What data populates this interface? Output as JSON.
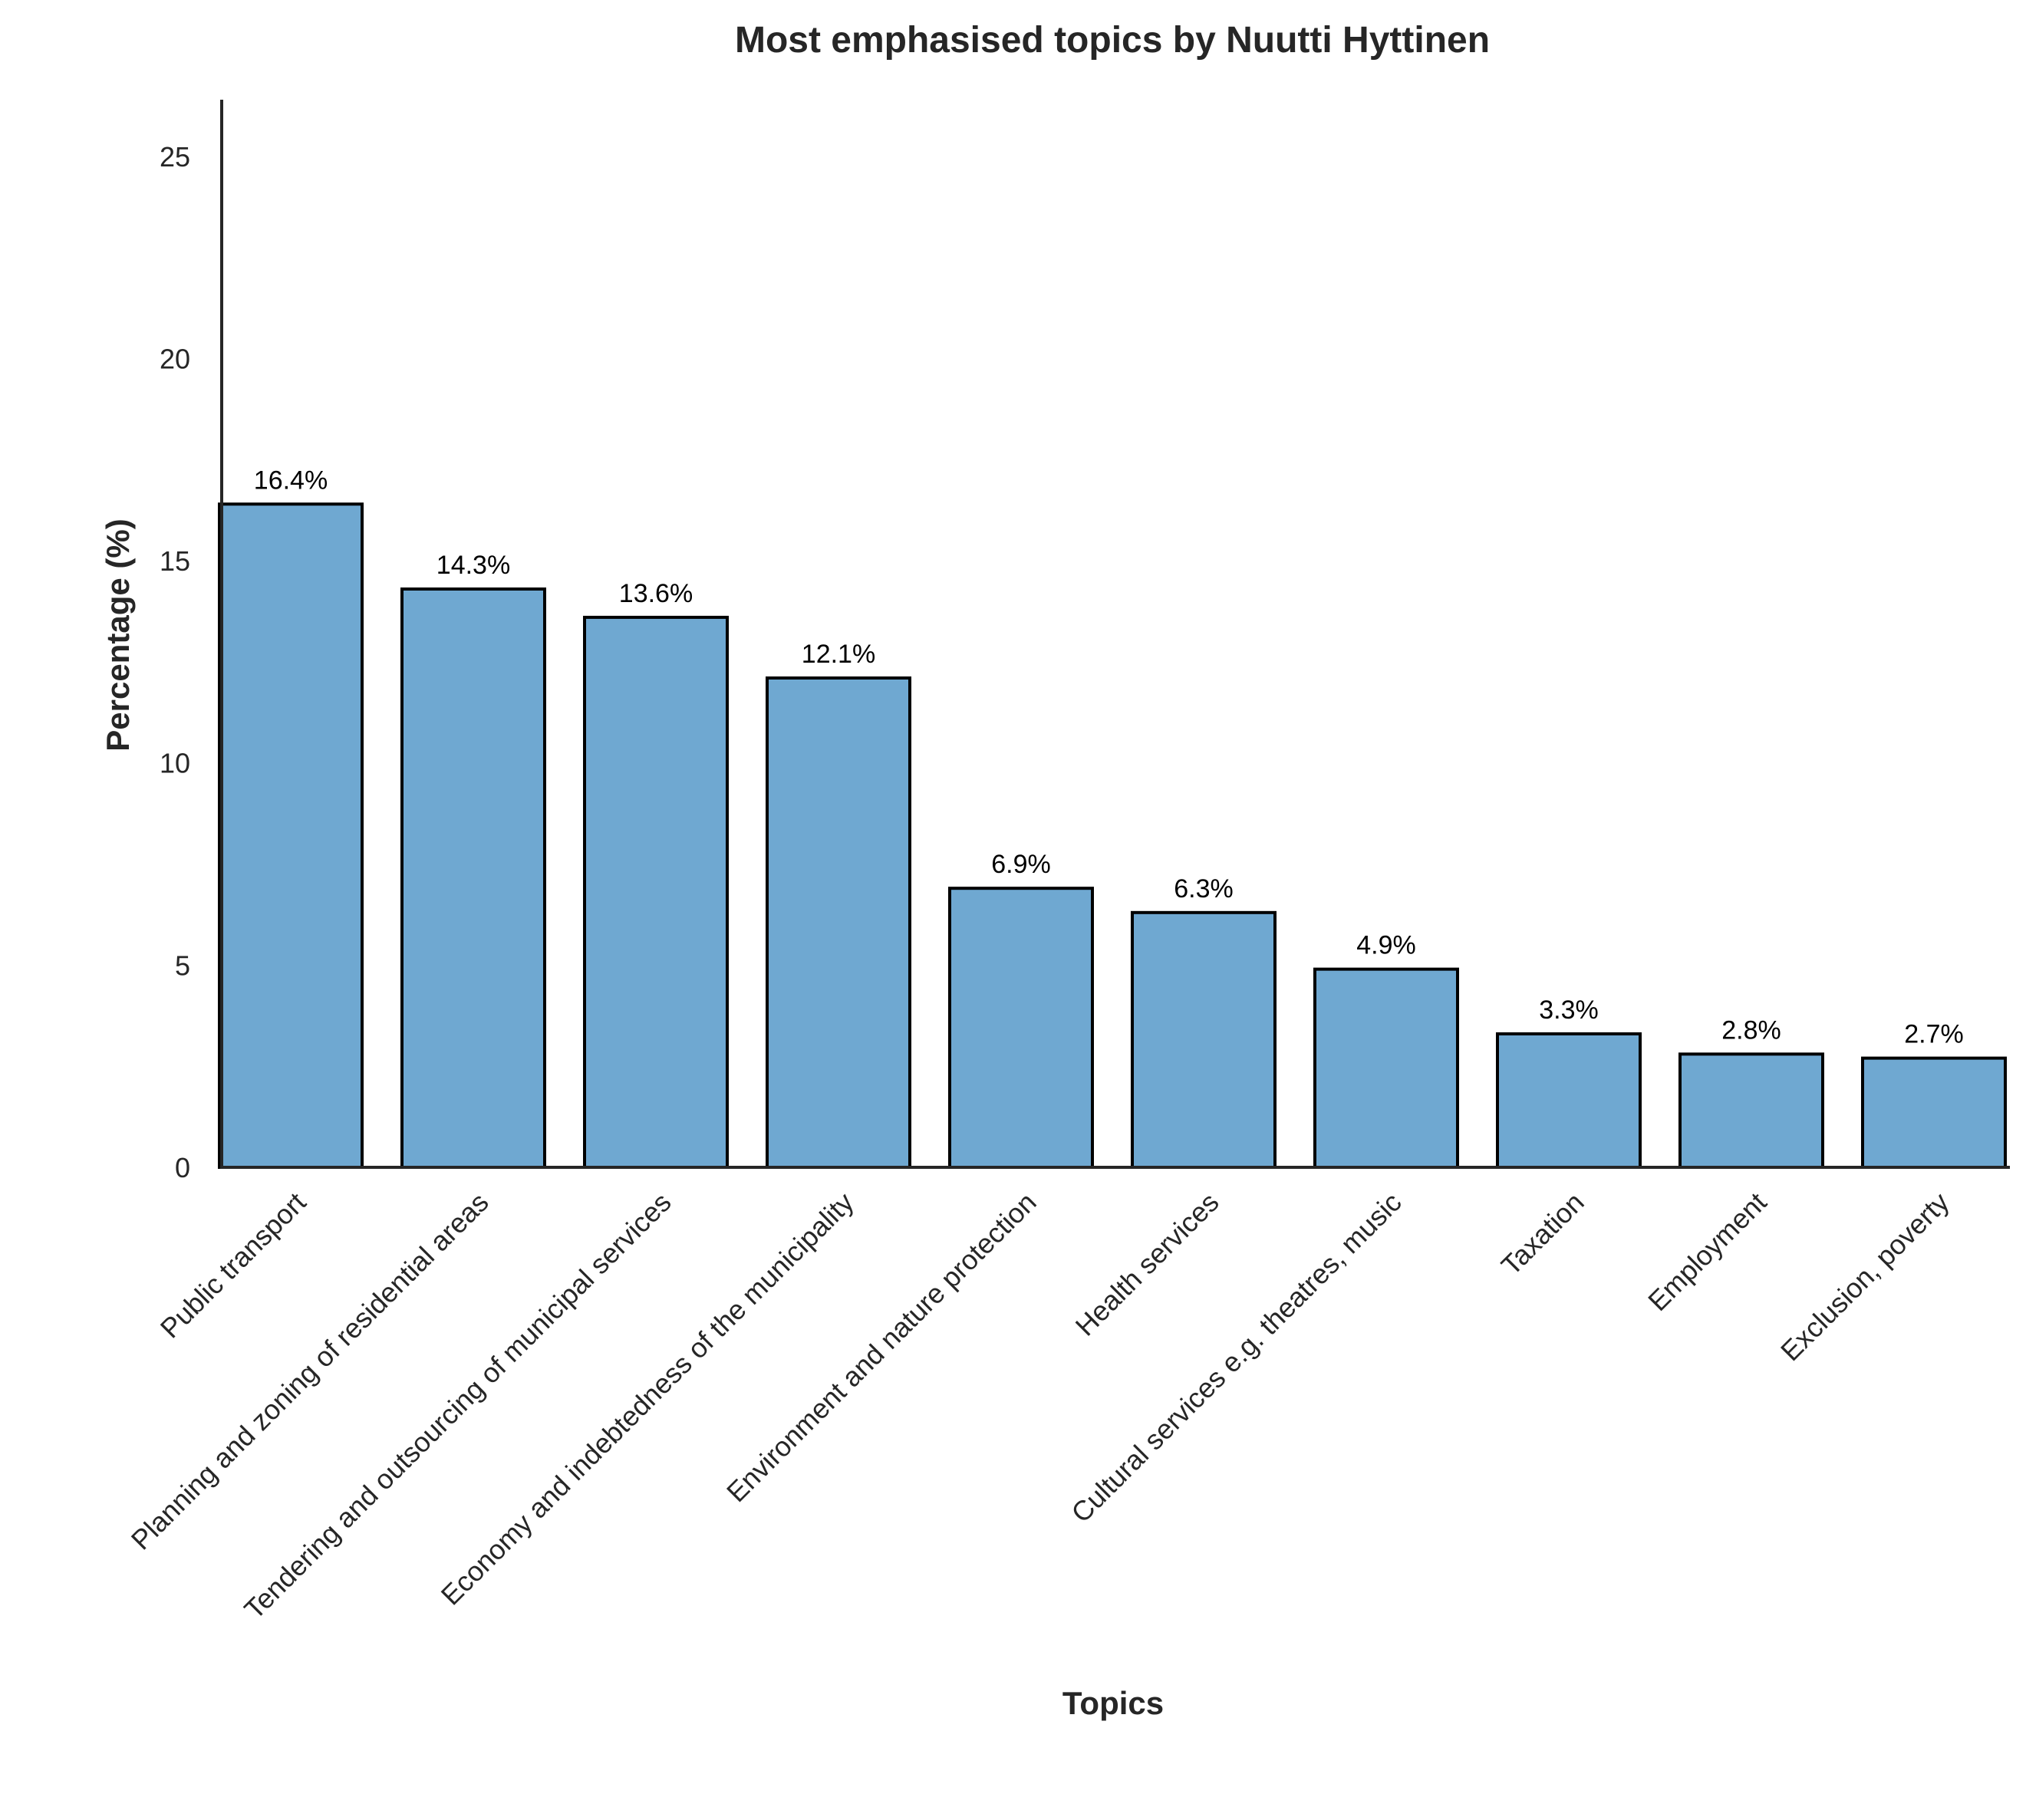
{
  "chart_data": {
    "type": "bar",
    "title": "Most emphasised topics by Nuutti Hyttinen",
    "xlabel": "Topics",
    "ylabel": "Percentage (%)",
    "categories": [
      "Public transport",
      "Planning and zoning of residential areas",
      "Tendering and outsourcing of municipal services",
      "Economy and indebtedness of the municipality",
      "Environment and nature protection",
      "Health services",
      "Cultural services e.g. theatres, music",
      "Taxation",
      "Employment",
      "Exclusion, poverty"
    ],
    "values": [
      16.4,
      14.3,
      13.6,
      12.1,
      6.9,
      6.3,
      4.9,
      3.3,
      2.8,
      2.7
    ],
    "data_labels": [
      "16.4%",
      "14.3%",
      "13.6%",
      "12.1%",
      "6.9%",
      "6.3%",
      "4.9%",
      "3.3%",
      "2.8%",
      "2.7%"
    ],
    "yticks": [
      0,
      5,
      10,
      15,
      20,
      25
    ],
    "ylim": [
      0,
      26.4
    ],
    "grid": false,
    "bar_color": "#6fa8d1",
    "edge_color": "#000000"
  }
}
